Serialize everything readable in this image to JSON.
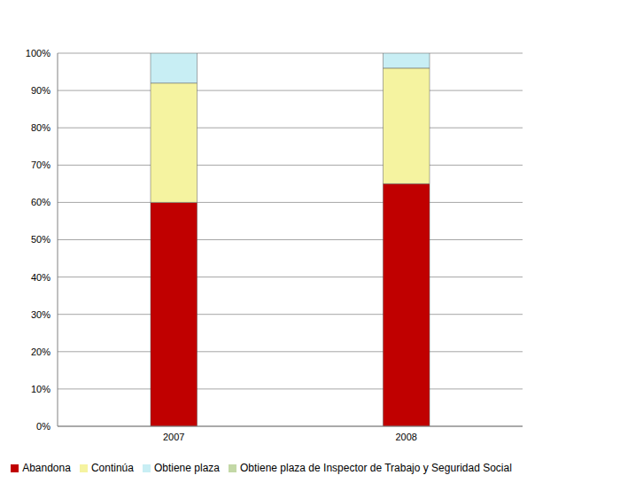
{
  "chart_data": {
    "type": "bar",
    "stacked": true,
    "categories": [
      "2007",
      "2008"
    ],
    "series": [
      {
        "name": "Abandona",
        "color": "#c00000",
        "values": [
          60,
          65
        ]
      },
      {
        "name": "Continúa",
        "color": "#f5f3a0",
        "values": [
          32,
          31
        ]
      },
      {
        "name": "Obtiene plaza",
        "color": "#c8eef4",
        "values": [
          8,
          4
        ]
      },
      {
        "name": "Obtiene plaza de Inspector de Trabajo y Seguridad Social",
        "color": "#c3d8a6",
        "values": [
          0,
          0
        ]
      }
    ],
    "ylim": [
      0,
      100
    ],
    "yticks": [
      {
        "value": 0,
        "label": "0%"
      },
      {
        "value": 10,
        "label": "10%"
      },
      {
        "value": 20,
        "label": "20%"
      },
      {
        "value": 30,
        "label": "30%"
      },
      {
        "value": 40,
        "label": "40%"
      },
      {
        "value": 50,
        "label": "50%"
      },
      {
        "value": 60,
        "label": "60%"
      },
      {
        "value": 70,
        "label": "70%"
      },
      {
        "value": 80,
        "label": "80%"
      },
      {
        "value": 90,
        "label": "90%"
      },
      {
        "value": 100,
        "label": "100%"
      }
    ],
    "grid": true,
    "legend": "bottom"
  }
}
